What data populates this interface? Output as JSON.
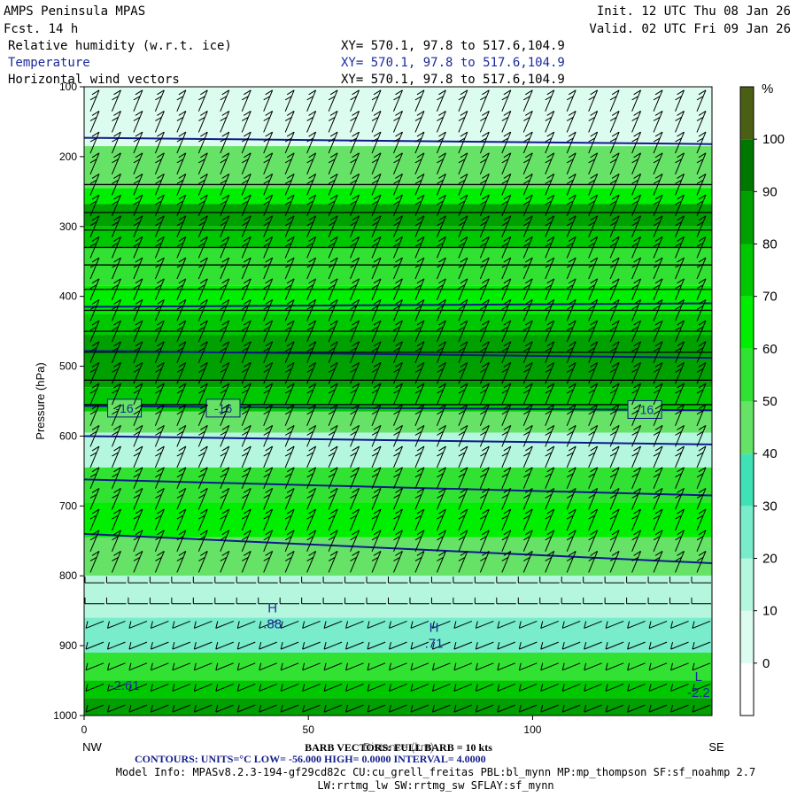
{
  "header": {
    "model": "AMPS Peninsula MPAS",
    "fcst": "Fcst.   14 h",
    "init": "Init. 12 UTC Thu 08 Jan 26",
    "valid": "Valid. 02 UTC Fri 09 Jan 26",
    "field_rh": "Relative humidity (w.r.t. ice)",
    "field_temp": "Temperature",
    "field_wind": "Horizontal wind vectors",
    "xy": "XY= 570.1, 97.8 to 517.6,104.9"
  },
  "colors": {
    "temp_contour": "#101a8c",
    "isobar": "#000000",
    "barb": "#000000",
    "rh_levels": [
      "#ffffff",
      "#ddfcf0",
      "#b4f6de",
      "#78eccb",
      "#3fe2b5",
      "#66e266",
      "#32e232",
      "#00ee00",
      "#00c800",
      "#00a000",
      "#007800",
      "#4b5f14"
    ]
  },
  "chart_data": {
    "type": "heatmap",
    "x": {
      "label": "Distance (km)",
      "range": [
        0,
        140
      ],
      "ticks": [
        0,
        50,
        100
      ],
      "left_end_label": "NW",
      "right_end_label": "SE"
    },
    "y": {
      "label": "Pressure (hPa)",
      "range": [
        100,
        1000
      ],
      "inverted": true,
      "ticks": [
        100,
        200,
        300,
        400,
        500,
        600,
        700,
        800,
        900,
        1000
      ]
    },
    "colorbar": {
      "unit": "%",
      "boundaries": [
        0,
        10,
        20,
        30,
        40,
        50,
        60,
        70,
        80,
        90,
        100
      ],
      "tick_labels": [
        "0",
        "10",
        "20",
        "30",
        "40",
        "50",
        "60",
        "70",
        "80",
        "90",
        "100"
      ],
      "placement": "right"
    },
    "humidity_bands": [
      {
        "p_top": 100,
        "p_bot": 185,
        "rh": 0
      },
      {
        "p_top": 185,
        "p_bot": 245,
        "rh": 45
      },
      {
        "p_top": 245,
        "p_bot": 268,
        "rh": 65
      },
      {
        "p_top": 268,
        "p_bot": 300,
        "rh": 83
      },
      {
        "p_top": 300,
        "p_bot": 330,
        "rh": 75
      },
      {
        "p_top": 330,
        "p_bot": 385,
        "rh": 55
      },
      {
        "p_top": 385,
        "p_bot": 425,
        "rh": 65
      },
      {
        "p_top": 425,
        "p_bot": 455,
        "rh": 75
      },
      {
        "p_top": 455,
        "p_bot": 530,
        "rh": 88
      },
      {
        "p_top": 530,
        "p_bot": 565,
        "rh": 70
      },
      {
        "p_top": 565,
        "p_bot": 595,
        "rh": 45
      },
      {
        "p_top": 595,
        "p_bot": 645,
        "rh": 15
      },
      {
        "p_top": 645,
        "p_bot": 695,
        "rh": 50
      },
      {
        "p_top": 695,
        "p_bot": 745,
        "rh": 65
      },
      {
        "p_top": 745,
        "p_bot": 800,
        "rh": 45
      },
      {
        "p_top": 800,
        "p_bot": 860,
        "rh": 15
      },
      {
        "p_top": 860,
        "p_bot": 910,
        "rh": 25
      },
      {
        "p_top": 910,
        "p_bot": 950,
        "rh": 50
      },
      {
        "p_top": 950,
        "p_bot": 975,
        "rh": 72
      },
      {
        "p_top": 975,
        "p_bot": 1000,
        "rh": 88
      }
    ],
    "isobars": [
      240,
      280,
      305,
      330,
      355,
      390,
      420,
      450,
      480,
      520,
      555
    ],
    "temperature_contours": [
      {
        "x": [
          0,
          140
        ],
        "p": [
          173,
          182
        ]
      },
      {
        "x": [
          0,
          140
        ],
        "p": [
          415,
          410
        ]
      },
      {
        "x": [
          0,
          140
        ],
        "p": [
          478,
          488
        ]
      },
      {
        "x": [
          0,
          140
        ],
        "p": [
          557,
          563
        ],
        "label": "-16"
      },
      {
        "x": [
          0,
          140
        ],
        "p": [
          600,
          612
        ]
      },
      {
        "x": [
          0,
          140
        ],
        "p": [
          662,
          685
        ]
      },
      {
        "x": [
          0,
          140
        ],
        "p": [
          740,
          782
        ]
      }
    ],
    "contour_labels": [
      {
        "x": 9,
        "p": 560,
        "text": "-16"
      },
      {
        "x": 31,
        "p": 560,
        "text": "-16"
      },
      {
        "x": 125,
        "p": 562,
        "text": "-16"
      }
    ],
    "extrema": [
      {
        "x": 42,
        "p": 870,
        "type": "H",
        "value": ".88"
      },
      {
        "x": 78,
        "p": 898,
        "type": "H",
        "value": ".71"
      },
      {
        "x": 9,
        "p": 958,
        "type": "",
        "value": "-2.61"
      },
      {
        "x": 137,
        "p": 968,
        "type": "L",
        "value": "-2.2"
      }
    ],
    "barb_columns": 29,
    "barb_pressure_levels": [
      120,
      150,
      180,
      210,
      240,
      270,
      300,
      330,
      360,
      390,
      420,
      450,
      480,
      510,
      540,
      570,
      600,
      630,
      660,
      690,
      720,
      750,
      780,
      810,
      840,
      870,
      900,
      930,
      960,
      990
    ]
  },
  "footer": {
    "barb_text": "BARB VECTORS:  FULL BARB = 10 kts",
    "contours_text": "CONTOURS:  UNITS=°C  LOW=  -56.000        HIGH=   0.0000        INTERVAL=     4.0000",
    "model_info": "Model Info: MPASv8.2.3-194-gf29cd82c CU:cu_grell_freitas PBL:bl_mynn MP:mp_thompson SF:sf_noahmp 2.7",
    "model_info_2": "LW:rrtmg_lw SW:rrtmg_sw SFLAY:sf_mynn"
  }
}
